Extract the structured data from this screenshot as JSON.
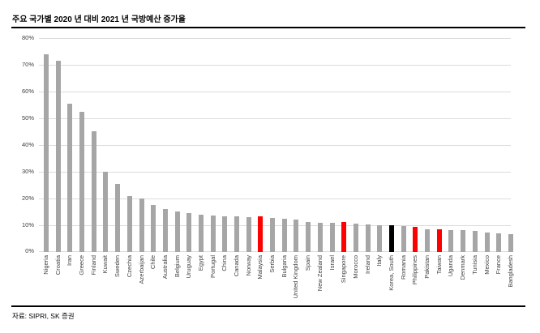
{
  "chart_data": {
    "type": "bar",
    "title": "주요 국가별 2020 년 대비 2021 년 국방예산 증가율",
    "xlabel": "",
    "ylabel": "",
    "ylim": [
      0,
      80
    ],
    "ytick_step": 10,
    "ytick_suffix": "%",
    "grid": true,
    "legend_position": "none",
    "categories": [
      "Nigeria",
      "Croatia",
      "Iran",
      "Greece",
      "Finland",
      "Kuwait",
      "Sweden",
      "Czechia",
      "Azerbaijan",
      "Chile",
      "Australia",
      "Belgium",
      "Uruguay",
      "Egypt",
      "Portugal",
      "China",
      "Canada",
      "Norway",
      "Malaysia",
      "Serbia",
      "Bulgaria",
      "United Kingdom",
      "Spain",
      "New Zealand",
      "Israel",
      "Singapore",
      "Morocco",
      "Ireland",
      "Italy",
      "Korea, South",
      "Romania",
      "Philippines",
      "Pakistan",
      "Taiwan",
      "Uganda",
      "Denmark",
      "Tunisia",
      "Mexico",
      "France",
      "Bangladesh"
    ],
    "values": [
      74,
      71.5,
      55.5,
      52.5,
      45,
      30,
      25.5,
      21,
      20,
      17.5,
      16,
      15.3,
      14.6,
      14,
      13.5,
      13.2,
      13.2,
      13,
      13.2,
      12.7,
      12.3,
      12,
      11.3,
      11,
      10.8,
      11.2,
      10.5,
      10.2,
      10,
      10,
      9.8,
      9.5,
      8.4,
      8.6,
      8.2,
      8.1,
      7.8,
      7.4,
      7.1,
      6.8
    ],
    "color_keys": [
      "default",
      "default",
      "default",
      "default",
      "default",
      "default",
      "default",
      "default",
      "default",
      "default",
      "default",
      "default",
      "default",
      "default",
      "default",
      "default",
      "default",
      "default",
      "red",
      "default",
      "default",
      "default",
      "default",
      "default",
      "default",
      "red",
      "default",
      "default",
      "default",
      "black",
      "default",
      "red",
      "default",
      "red",
      "default",
      "default",
      "default",
      "default",
      "default",
      "default"
    ],
    "colors": {
      "default": "#A6A6A6",
      "red": "#FF0000",
      "black": "#000000"
    }
  },
  "footer": {
    "source": "자료: SIPRI, SK 증권"
  }
}
